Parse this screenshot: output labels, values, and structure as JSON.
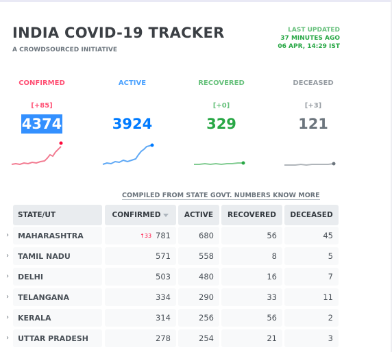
{
  "header": {
    "title": "INDIA COVID-19 TRACKER",
    "subtitle": "A CROWDSOURCED INITIATIVE",
    "updated_label": "LAST UPDATED",
    "updated_ago": "37 MINUTES AGO",
    "updated_time": "06 APR, 14:29 IST"
  },
  "colors": {
    "confirmed": "#ff073a",
    "active": "#007bff",
    "recovered": "#28a745",
    "deceased": "#6c757d",
    "highlight": "#3390ff"
  },
  "stats": [
    {
      "label": "CONFIRMED",
      "delta": "[+85]",
      "value": "4374",
      "selected": true
    },
    {
      "label": "ACTIVE",
      "delta": "",
      "value": "3924"
    },
    {
      "label": "RECOVERED",
      "delta": "[+0]",
      "value": "329"
    },
    {
      "label": "DECEASED",
      "delta": "[+3]",
      "value": "121"
    }
  ],
  "compiled_note": "COMPILED FROM STATE GOVT. NUMBERS KNOW MORE",
  "table": {
    "headers": [
      "STATE/UT",
      "CONFIRMED",
      "ACTIVE",
      "RECOVERED",
      "DECEASED"
    ],
    "sort_icon": "caret-down-icon",
    "expand_icon": "chevron-right-icon",
    "rows": [
      {
        "state": "MAHARASHTRA",
        "increase": "↑33",
        "confirmed": "781",
        "active": "680",
        "recovered": "56",
        "deceased": "45"
      },
      {
        "state": "TAMIL NADU",
        "increase": "",
        "confirmed": "571",
        "active": "558",
        "recovered": "8",
        "deceased": "5"
      },
      {
        "state": "DELHI",
        "increase": "",
        "confirmed": "503",
        "active": "480",
        "recovered": "16",
        "deceased": "7"
      },
      {
        "state": "TELANGANA",
        "increase": "",
        "confirmed": "334",
        "active": "290",
        "recovered": "33",
        "deceased": "11"
      },
      {
        "state": "KERALA",
        "increase": "",
        "confirmed": "314",
        "active": "256",
        "recovered": "56",
        "deceased": "2"
      },
      {
        "state": "UTTAR PRADESH",
        "increase": "",
        "confirmed": "278",
        "active": "254",
        "recovered": "21",
        "deceased": "3"
      }
    ]
  }
}
